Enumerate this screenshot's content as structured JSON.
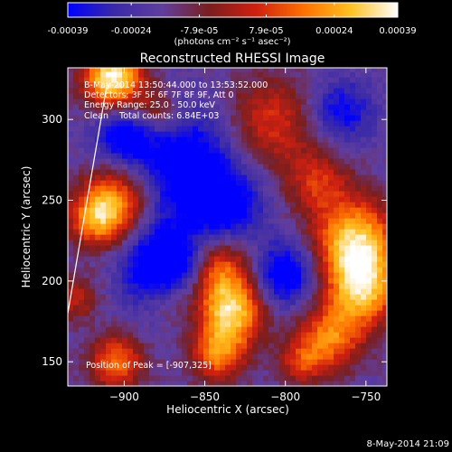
{
  "colorbar": {
    "tick_labels": [
      "-0.00039",
      "-0.00024",
      "-7.9e-05",
      "7.9e-05",
      "0.00024",
      "0.00039"
    ],
    "tick_values": [
      -0.00039,
      -0.00024,
      -7.9e-05,
      7.9e-05,
      0.00024,
      0.00039
    ],
    "range": [
      -0.00039,
      0.00039
    ],
    "unit_label": "(photons cm⁻² s⁻¹ asec⁻²)",
    "colors": [
      "#0000ff",
      "#3a2aa8",
      "#603e9e",
      "#7a1e1e",
      "#d02010",
      "#ff7000",
      "#ffc020",
      "#ffffff"
    ]
  },
  "chart_data": {
    "type": "heatmap",
    "title": "Reconstructed RHESSI Image",
    "xlabel": "Heliocentric X (arcsec)",
    "ylabel": "Heliocentric Y (arcsec)",
    "xlim": [
      -935,
      -737
    ],
    "ylim": [
      135,
      332
    ],
    "x_ticks": [
      -900,
      -850,
      -800,
      -750
    ],
    "y_ticks": [
      150,
      200,
      250,
      300
    ],
    "x_tick_labels": [
      "−900",
      "−850",
      "−800",
      "−750"
    ],
    "y_tick_labels": [
      "150",
      "200",
      "250",
      "300"
    ],
    "annotations": [
      "B-May-2014 13:50:44.000 to 13:53:52.000",
      "Detectors: 3F 5F 6F 7F 8F 9F, Att 0",
      "Energy Range: 25.0 - 50.0 keV",
      "Clean    Total counts: 6.84E+03"
    ],
    "peak_label": "Position of Peak = [-907,325]",
    "peak": [
      -907,
      325
    ],
    "limb_line": [
      [
        -935,
        180
      ],
      [
        -911,
        320
      ]
    ],
    "sources": [
      {
        "x": -907,
        "y": 326,
        "r": 13,
        "level": 1.0
      },
      {
        "x": -880,
        "y": 305,
        "r": 10,
        "level": 0.35
      },
      {
        "x": -810,
        "y": 298,
        "r": 20,
        "level": 0.45
      },
      {
        "x": -780,
        "y": 262,
        "r": 14,
        "level": 0.4
      },
      {
        "x": -905,
        "y": 250,
        "r": 15,
        "level": 0.65
      },
      {
        "x": -918,
        "y": 238,
        "r": 12,
        "level": 0.55
      },
      {
        "x": -872,
        "y": 190,
        "r": 12,
        "level": 0.5
      },
      {
        "x": -845,
        "y": 205,
        "r": 16,
        "level": 0.8
      },
      {
        "x": -833,
        "y": 180,
        "r": 14,
        "level": 0.75
      },
      {
        "x": -842,
        "y": 155,
        "r": 12,
        "level": 0.6
      },
      {
        "x": -757,
        "y": 225,
        "r": 18,
        "level": 0.85
      },
      {
        "x": -752,
        "y": 195,
        "r": 16,
        "level": 0.75
      },
      {
        "x": -772,
        "y": 165,
        "r": 14,
        "level": 0.6
      },
      {
        "x": -905,
        "y": 150,
        "r": 12,
        "level": 0.6
      },
      {
        "x": -790,
        "y": 150,
        "r": 10,
        "level": 0.4
      },
      {
        "x": -930,
        "y": 190,
        "r": 10,
        "level": 0.35
      }
    ],
    "dips": [
      {
        "x": -870,
        "y": 205,
        "r": 18,
        "level": -1.0
      },
      {
        "x": -860,
        "y": 270,
        "r": 25,
        "level": -0.55
      },
      {
        "x": -800,
        "y": 205,
        "r": 14,
        "level": -0.55
      },
      {
        "x": -900,
        "y": 290,
        "r": 12,
        "level": -0.45
      },
      {
        "x": -765,
        "y": 305,
        "r": 14,
        "level": -0.4
      },
      {
        "x": -835,
        "y": 245,
        "r": 14,
        "level": -0.4
      }
    ]
  },
  "footer": {
    "date": "8-May-2014 21:09"
  }
}
